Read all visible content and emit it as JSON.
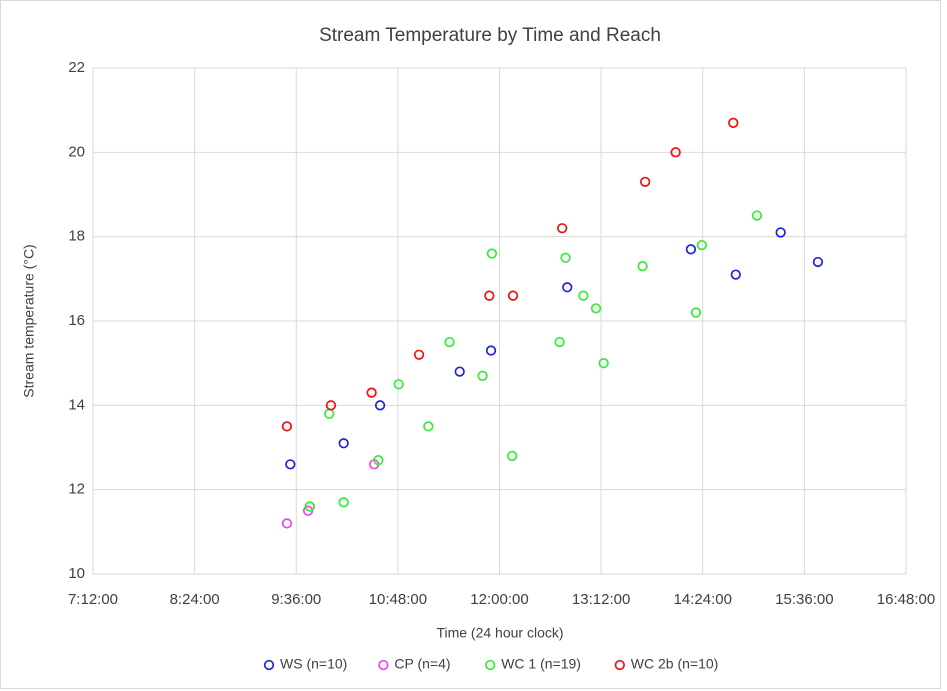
{
  "chart_data": {
    "type": "scatter",
    "title": "Stream Temperature by Time and Reach",
    "x_label": "Time (24 hour clock)",
    "y_label": "Stream temperature (°C)",
    "xlim": [
      7.2,
      16.8
    ],
    "xticks": [
      {
        "value": 7.2,
        "label": "7:12:00"
      },
      {
        "value": 8.4,
        "label": "8:24:00"
      },
      {
        "value": 9.6,
        "label": "9:36:00"
      },
      {
        "value": 10.8,
        "label": "10:48:00"
      },
      {
        "value": 12.0,
        "label": "12:00:00"
      },
      {
        "value": 13.2,
        "label": "13:12:00"
      },
      {
        "value": 14.4,
        "label": "14:24:00"
      },
      {
        "value": 15.6,
        "label": "15:36:00"
      },
      {
        "value": 16.8,
        "label": "16:48:00"
      }
    ],
    "ylim": [
      10,
      22
    ],
    "yticks": [
      10,
      12,
      14,
      16,
      18,
      20,
      22
    ],
    "grid": true,
    "legend": "bottom",
    "series": [
      {
        "name": "WS (n=10)",
        "color": "#2222dd",
        "x": [
          9.53,
          10.16,
          10.59,
          11.53,
          11.9,
          12.8,
          14.26,
          14.79,
          15.32,
          15.76
        ],
        "values": [
          12.6,
          13.1,
          14.0,
          14.8,
          15.3,
          16.8,
          17.7,
          17.1,
          18.1,
          17.4
        ]
      },
      {
        "name": "CP (n=4)",
        "color": "#ee44ee",
        "x": [
          9.49,
          9.74,
          9.76,
          10.52
        ],
        "values": [
          11.2,
          11.5,
          11.6,
          12.6
        ]
      },
      {
        "name": "WC 1 (n=19)",
        "color": "#33ee33",
        "x": [
          9.76,
          9.99,
          10.16,
          10.57,
          10.81,
          11.16,
          11.41,
          11.8,
          11.91,
          12.15,
          12.71,
          12.78,
          12.99,
          13.14,
          13.23,
          13.69,
          14.32,
          14.39,
          15.04
        ],
        "values": [
          11.6,
          13.8,
          11.7,
          12.7,
          14.5,
          13.5,
          15.5,
          14.7,
          17.6,
          12.8,
          15.5,
          17.5,
          16.6,
          16.3,
          15.0,
          17.3,
          16.2,
          17.8,
          18.5
        ]
      },
      {
        "name": "WC 2b (n=10)",
        "color": "#ee1111",
        "x": [
          9.49,
          10.01,
          10.49,
          11.05,
          11.88,
          12.16,
          12.74,
          13.72,
          14.08,
          14.76
        ],
        "values": [
          13.5,
          14.0,
          14.3,
          15.2,
          16.6,
          16.6,
          18.2,
          19.3,
          20.0,
          20.7
        ]
      }
    ]
  }
}
